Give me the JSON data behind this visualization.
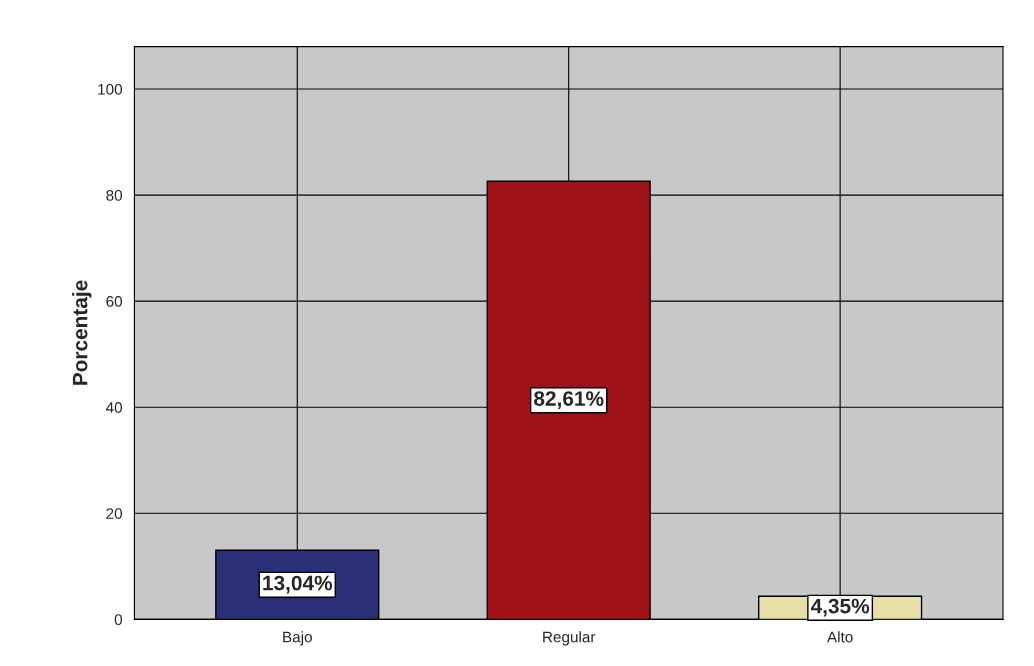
{
  "chart_data": {
    "type": "bar",
    "ylabel": "Porcentaje",
    "categories": [
      "Bajo",
      "Regular",
      "Alto"
    ],
    "values": [
      13.04,
      82.61,
      4.35
    ],
    "colors": [
      "#2b2f78",
      "#a11218",
      "#e6dfa6"
    ],
    "value_labels": [
      "13,04%",
      "82,61%",
      "4,35%"
    ],
    "ylim": [
      0,
      108
    ],
    "yticks": [
      0,
      20,
      40,
      60,
      80,
      100
    ],
    "grid": true
  }
}
